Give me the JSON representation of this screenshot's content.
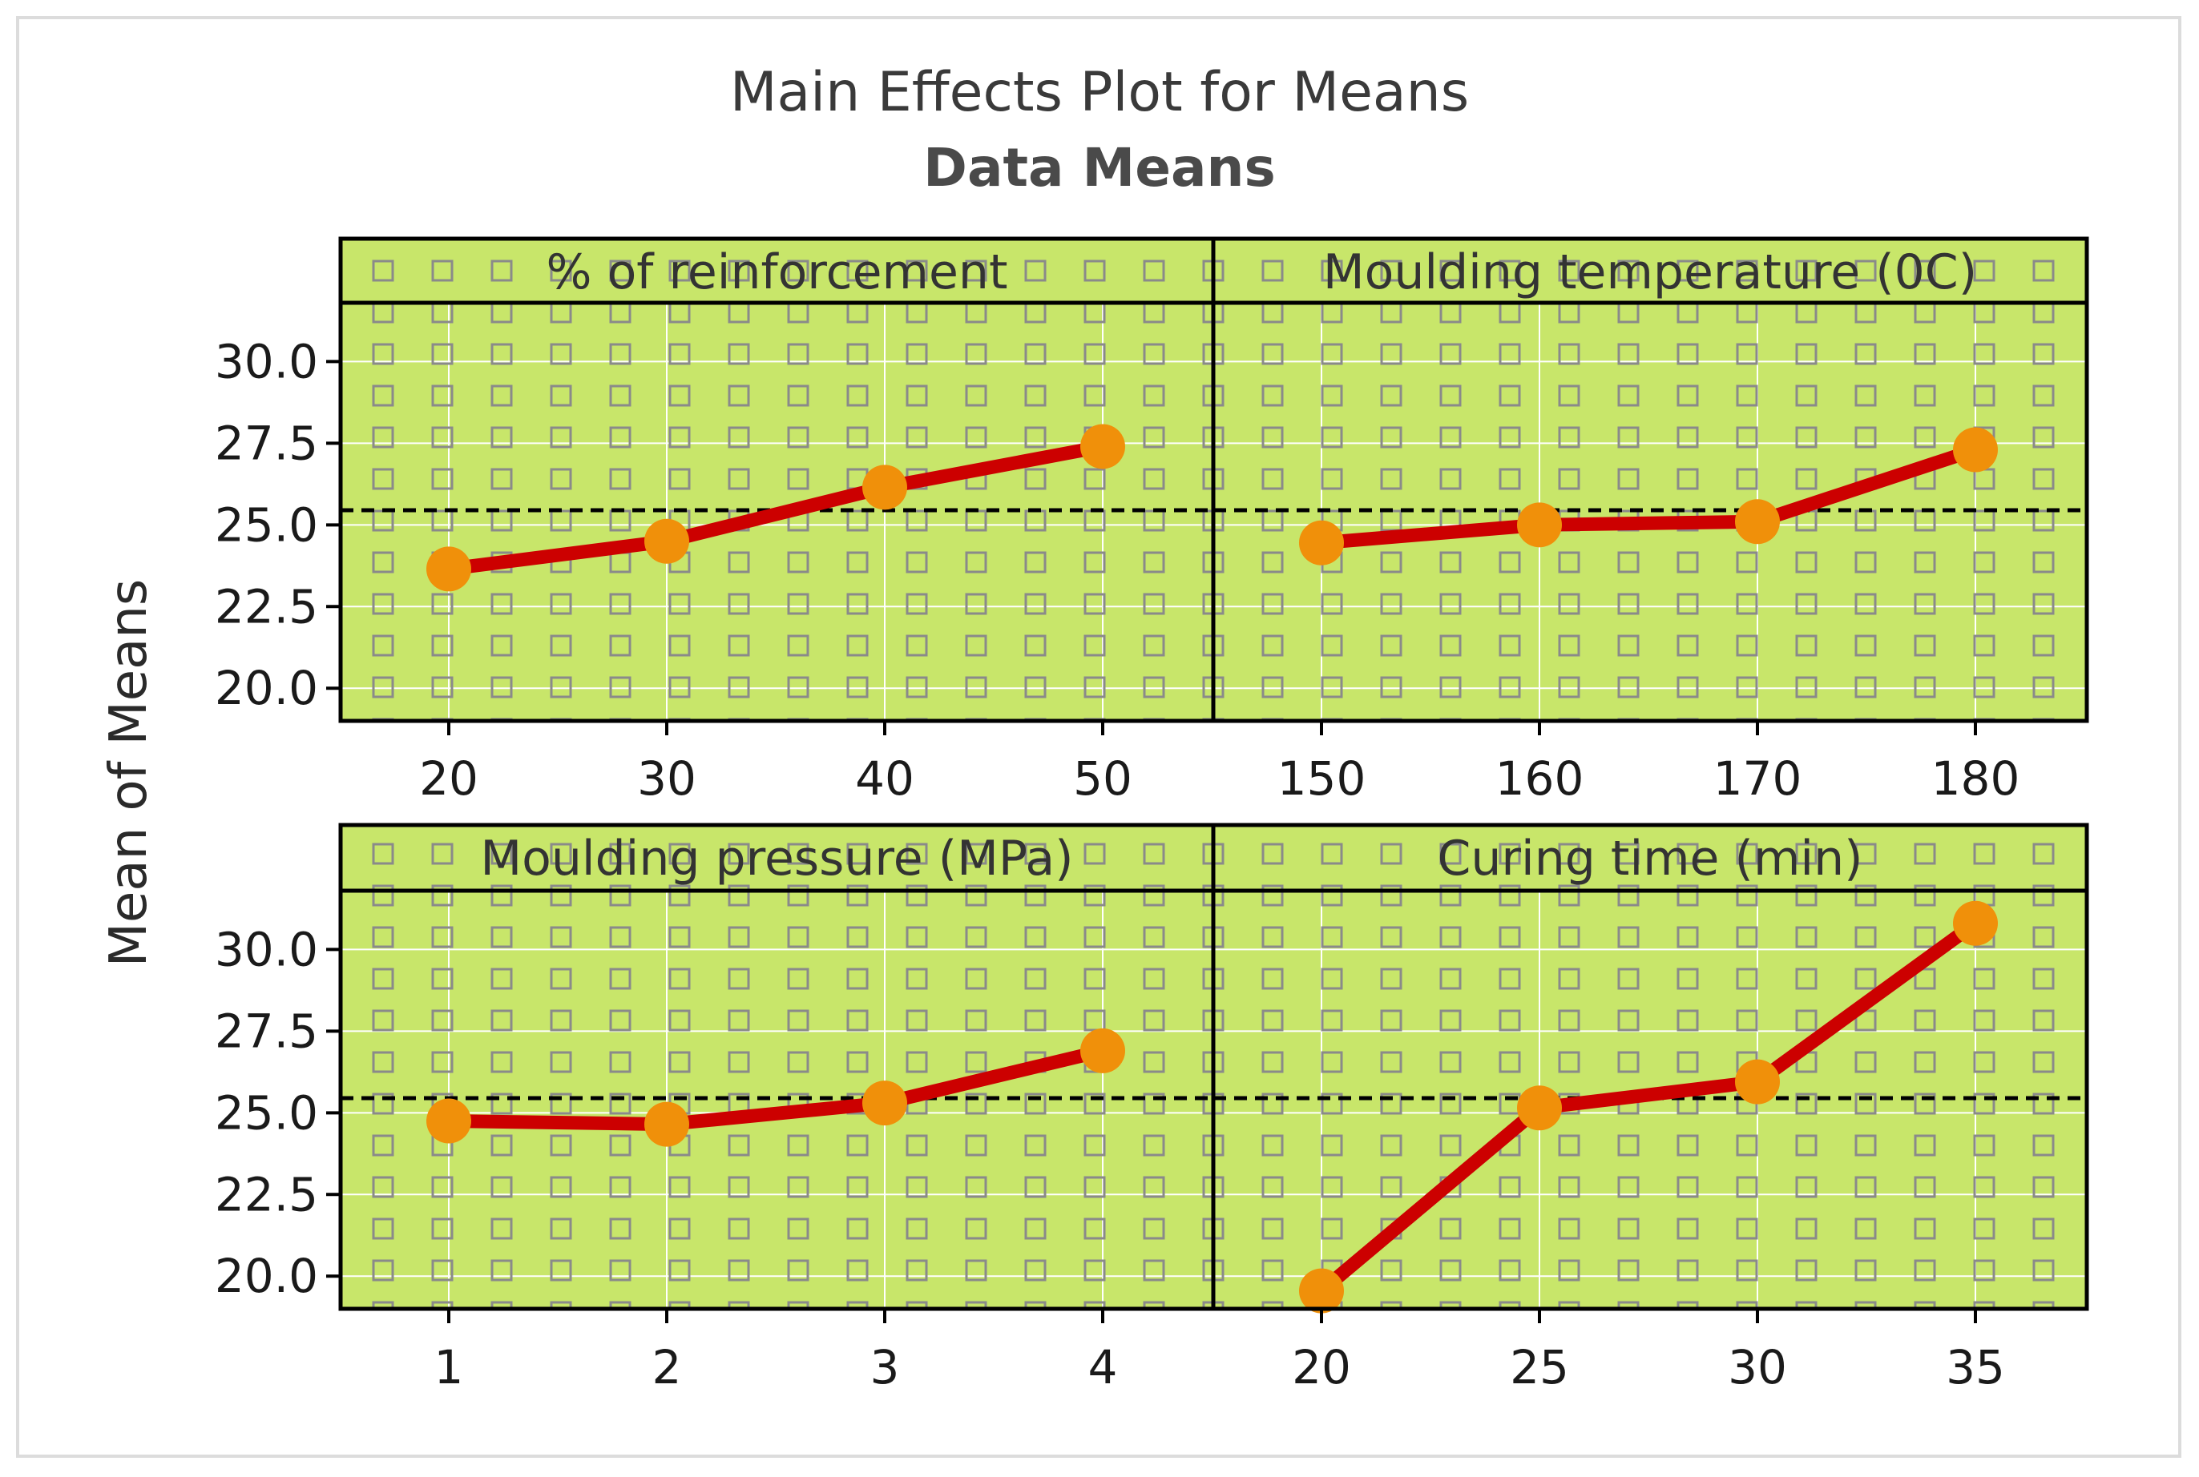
{
  "chart_data": {
    "type": "line",
    "title": "Main Effects Plot for Means",
    "subtitle": "Data Means",
    "ylabel": "Mean of Means",
    "ylim": [
      19.0,
      31.8
    ],
    "yticks": [
      "20.0",
      "22.5",
      "25.0",
      "27.5",
      "30.0"
    ],
    "ytick_values": [
      20.0,
      22.5,
      25.0,
      27.5,
      30.0
    ],
    "reference_line": 25.45,
    "colors": {
      "panel_bg": "#c8e66a",
      "line": "#cc0000",
      "marker": "#f0900a",
      "reference": "#000000",
      "grid": "#ffffff",
      "pattern": "#8a8a8a"
    },
    "panels": [
      {
        "name": "% of reinforcement",
        "categories": [
          "20",
          "30",
          "40",
          "50"
        ],
        "values": [
          23.65,
          24.5,
          26.15,
          27.4
        ]
      },
      {
        "name": "Moulding temperature (0C)",
        "categories": [
          "150",
          "160",
          "170",
          "180"
        ],
        "values": [
          24.45,
          25.0,
          25.1,
          27.3
        ]
      },
      {
        "name": "Moulding pressure (MPa)",
        "categories": [
          "1",
          "2",
          "3",
          "4"
        ],
        "values": [
          24.75,
          24.65,
          25.3,
          26.9
        ]
      },
      {
        "name": "Curing time (min)",
        "categories": [
          "20",
          "25",
          "30",
          "35"
        ],
        "values": [
          19.55,
          25.15,
          25.95,
          30.8
        ]
      }
    ]
  }
}
